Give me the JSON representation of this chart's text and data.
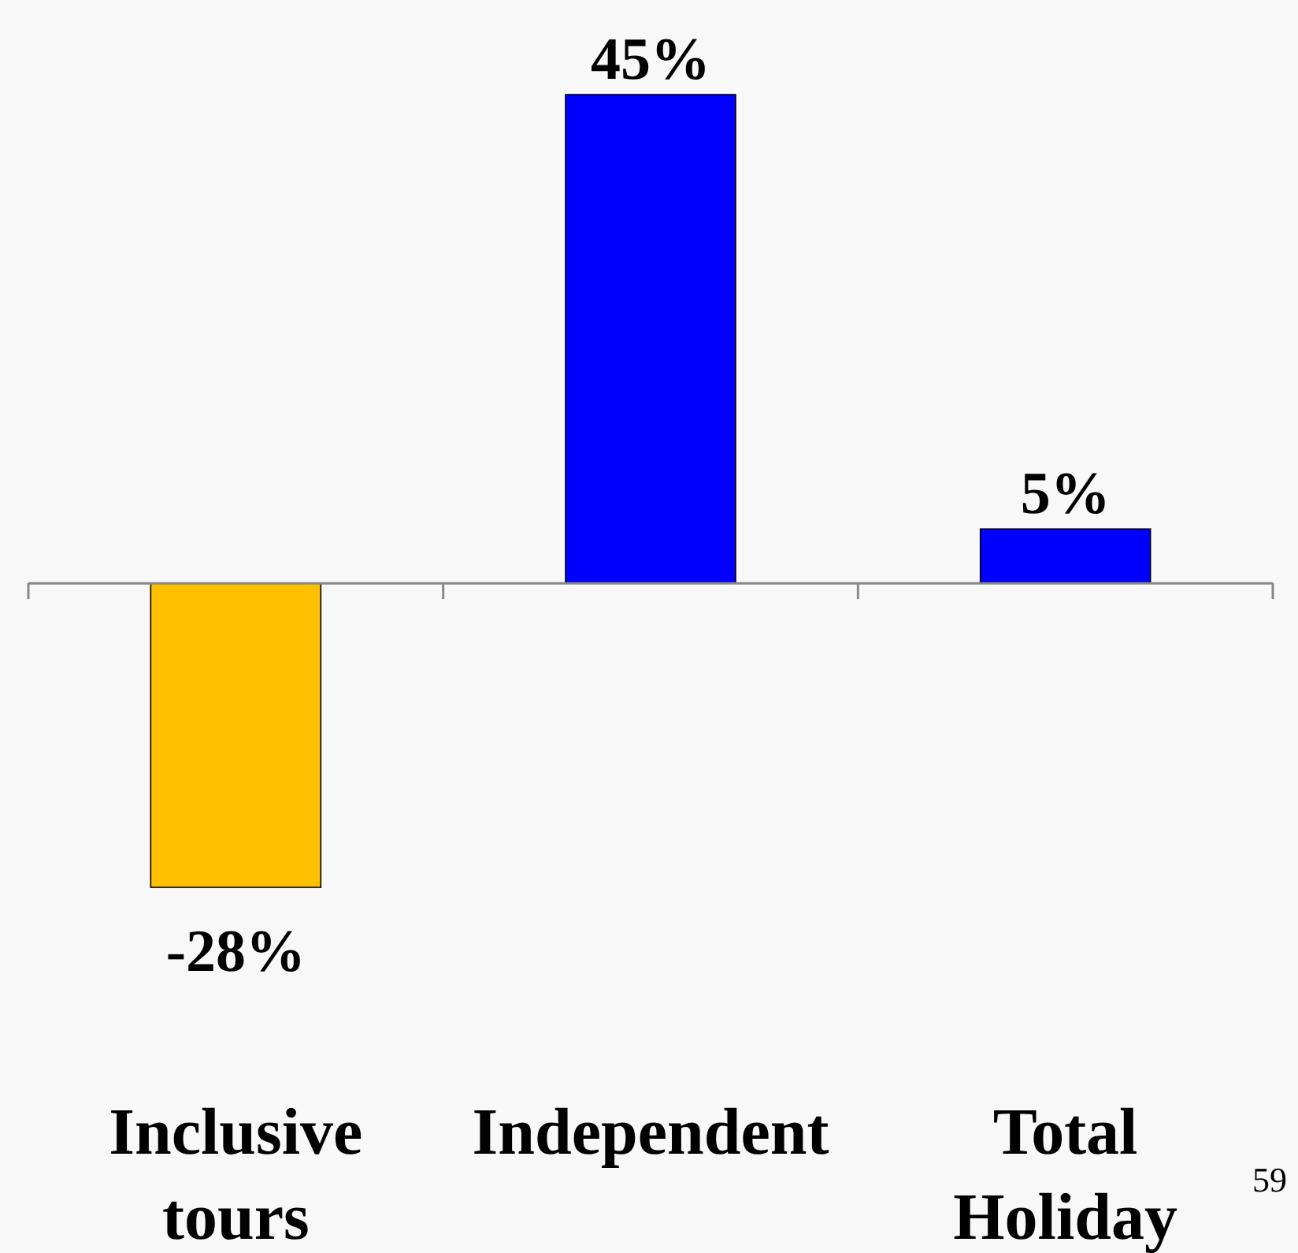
{
  "chart_data": {
    "type": "bar",
    "categories": [
      "Inclusive tours",
      "Independent",
      "Total Holiday"
    ],
    "values": [
      -28,
      45,
      5
    ],
    "colors": [
      "#ffc000",
      "#0000ff",
      "#0000ff"
    ],
    "value_labels": [
      "-28%",
      "45%",
      "5%"
    ],
    "annotations": [
      "59"
    ]
  }
}
